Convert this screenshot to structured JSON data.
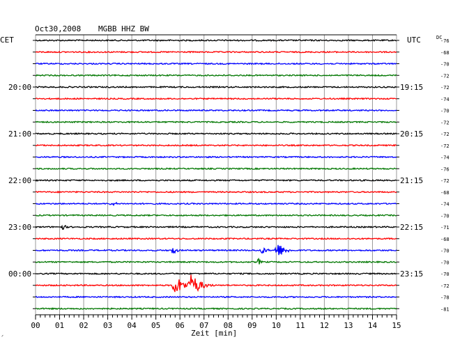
{
  "header": {
    "date": "Oct30,2008",
    "station": "MGBB HHZ BW",
    "left_zone": "CET",
    "right_zone": "UTC",
    "dc_label": "DC"
  },
  "footer": {
    "x_axis_label": "Zeit [min]",
    "corner_mark": "ᐟ"
  },
  "chart_data": {
    "type": "line",
    "title": "Oct30,2008   MGBB HHZ BW",
    "xlabel": "Zeit [min]",
    "xlim": [
      0,
      15
    ],
    "x_ticks": [
      "00",
      "01",
      "02",
      "03",
      "04",
      "05",
      "06",
      "07",
      "08",
      "09",
      "10",
      "11",
      "12",
      "13",
      "14",
      "15"
    ],
    "trace_colors": [
      "#000000",
      "#ff0000",
      "#0000ff",
      "#007700"
    ],
    "grid": true,
    "left_hour_labels": [
      {
        "trace": 4,
        "label": "20:00"
      },
      {
        "trace": 8,
        "label": "21:00"
      },
      {
        "trace": 12,
        "label": "22:00"
      },
      {
        "trace": 16,
        "label": "23:00"
      },
      {
        "trace": 20,
        "label": "00:00"
      }
    ],
    "right_hour_labels": [
      {
        "trace": 4,
        "label": "19:15"
      },
      {
        "trace": 8,
        "label": "20:15"
      },
      {
        "trace": 12,
        "label": "21:15"
      },
      {
        "trace": 16,
        "label": "22:15"
      },
      {
        "trace": 20,
        "label": "23:15"
      }
    ],
    "dc_offsets": [
      "-76",
      "-68",
      "-70",
      "-72",
      "-72",
      "-74",
      "-70",
      "-72",
      "-72",
      "-72",
      "-74",
      "-76",
      "-72",
      "-68",
      "-74",
      "-70",
      "-71",
      "-68",
      "-70",
      "-70",
      "-70",
      "-72",
      "-78",
      "-81"
    ],
    "events": [
      {
        "trace": 14,
        "start_min": 3.0,
        "duration_min": 1.1,
        "amplitude": 3
      },
      {
        "trace": 16,
        "start_min": 1.05,
        "duration_min": 0.5,
        "amplitude": 5
      },
      {
        "trace": 18,
        "start_min": 5.6,
        "duration_min": 0.5,
        "amplitude": 9
      },
      {
        "trace": 18,
        "start_min": 9.3,
        "duration_min": 0.7,
        "amplitude": 6
      },
      {
        "trace": 18,
        "start_min": 9.9,
        "duration_min": 1.0,
        "amplitude": 12
      },
      {
        "trace": 19,
        "start_min": 9.2,
        "duration_min": 0.35,
        "amplitude": 6
      },
      {
        "trace": 21,
        "start_min": 5.6,
        "duration_min": 1.4,
        "amplitude": 14
      },
      {
        "trace": 21,
        "start_min": 6.3,
        "duration_min": 1.2,
        "amplitude": 18
      }
    ]
  }
}
